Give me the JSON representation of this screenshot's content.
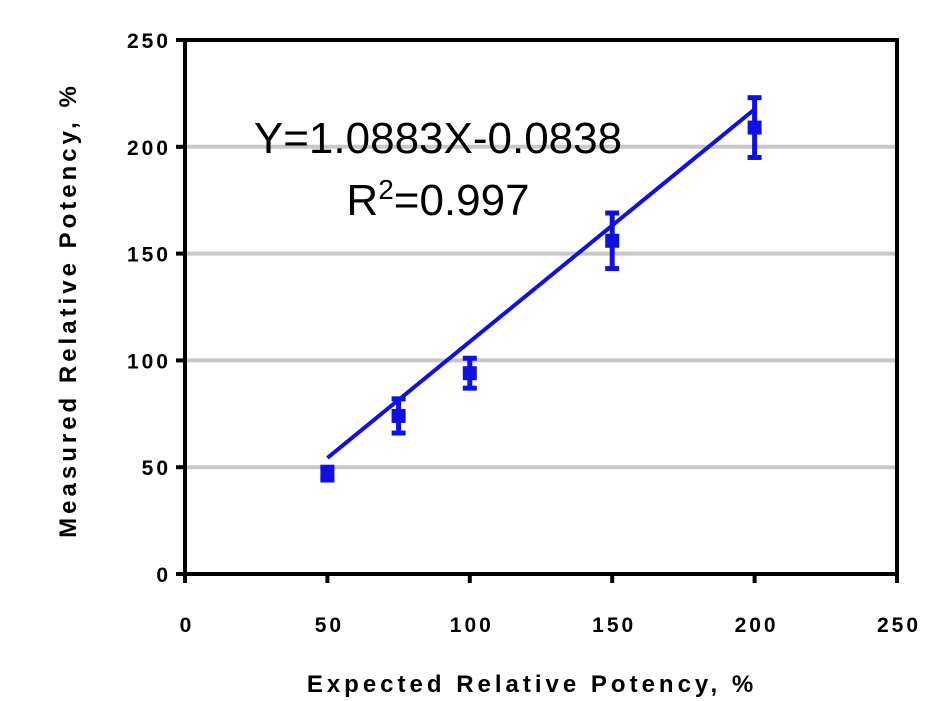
{
  "chart_data": {
    "type": "scatter",
    "xlabel": "Expected Relative Potency, %",
    "ylabel": "Measured Relative Potency, %",
    "xlim": [
      0,
      250
    ],
    "ylim": [
      0,
      250
    ],
    "xticks": [
      "0",
      "50",
      "100",
      "150",
      "200",
      "250"
    ],
    "yticks": [
      "0",
      "50",
      "100",
      "150",
      "200",
      "250"
    ],
    "grid": "horizontal",
    "points": [
      {
        "x": 50,
        "y": 47,
        "err": 3
      },
      {
        "x": 75,
        "y": 74,
        "err": 8
      },
      {
        "x": 100,
        "y": 94,
        "err": 7
      },
      {
        "x": 150,
        "y": 156,
        "err": 13
      },
      {
        "x": 200,
        "y": 209,
        "err": 14
      }
    ],
    "fit": {
      "slope": 1.0883,
      "intercept": -0.0838,
      "x_range": [
        50,
        200
      ]
    },
    "annotation": {
      "equation": "Y=1.0883X-0.0838",
      "r2_prefix": "R",
      "r2_sup": "2",
      "r2_value": "=0.997"
    },
    "colors": {
      "series": "#1010e0",
      "grid": "#c8c8c8",
      "axis": "#000000"
    }
  }
}
